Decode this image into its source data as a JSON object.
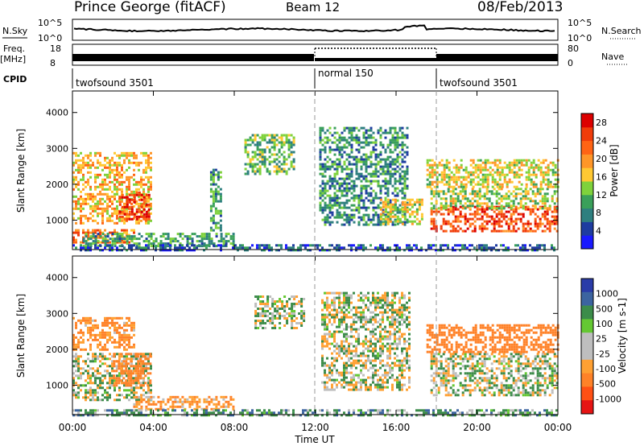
{
  "header": {
    "station": "Prince George (fitACF)",
    "beam": "Beam 12",
    "date": "08/Feb/2013"
  },
  "side_labels": {
    "nsky": "N.Sky",
    "freq_line1": "Freq.",
    "freq_line2": "[MHz]",
    "cpid": "CPID",
    "nsearch": "N.Search",
    "nave": "Nave"
  },
  "tick_labels": {
    "nsky_top": "10^5",
    "nsky_bottom": "10^0",
    "freq_top": "18",
    "freq_bottom": "8",
    "nsearch_top": "10^5",
    "nsearch_bottom": "10^0",
    "nave_top": "80",
    "nave_bottom": "0"
  },
  "cpid_segments": [
    {
      "label": "twofsound 3501",
      "start": "00:00",
      "end": "12:00"
    },
    {
      "label": "normal 150",
      "start": "12:00",
      "end": "18:00"
    },
    {
      "label": "twofsound 3501",
      "start": "18:00",
      "end": "24:00"
    }
  ],
  "colors": {
    "power_scale": [
      "#1a1aff",
      "#1e3ca0",
      "#2e7f7f",
      "#3aa05a",
      "#7fd23c",
      "#ffc832",
      "#ff9628",
      "#ff6414",
      "#f03c0a",
      "#dc0000"
    ],
    "velocity_scale": [
      "#2a3ca8",
      "#3c64a0",
      "#3c8c4a",
      "#64c832",
      "#bebebe",
      "#bebebe",
      "#ffa032",
      "#ff8228",
      "#ff5014",
      "#e61414"
    ],
    "axis": "#000000",
    "noise_line": "#000000"
  },
  "chart_data": [
    {
      "type": "heatmap",
      "panel": "power",
      "ylabel": "Slant Range [km]",
      "xlabel": "",
      "xlim": [
        0,
        24
      ],
      "ylim": [
        180,
        4600
      ],
      "yticks": [
        1000,
        2000,
        3000,
        4000
      ],
      "xticks": [
        "00:00",
        "04:00",
        "08:00",
        "12:00",
        "16:00",
        "20:00",
        "00:00"
      ],
      "colorbar": {
        "label": "Power [dB]",
        "ticks": [
          4,
          8,
          12,
          16,
          20,
          24,
          28
        ],
        "range": [
          0,
          30
        ]
      },
      "regions": [
        {
          "t0": 0.0,
          "t1": 3.9,
          "r0": 900,
          "r1": 2900,
          "v": 18
        },
        {
          "t0": 0.0,
          "t1": 3.0,
          "r0": 350,
          "r1": 750,
          "v": 22
        },
        {
          "t0": 2.3,
          "t1": 3.8,
          "r0": 1000,
          "r1": 1800,
          "v": 26
        },
        {
          "t0": 0.5,
          "t1": 8.0,
          "r0": 300,
          "r1": 650,
          "v": 10
        },
        {
          "t0": 6.8,
          "t1": 7.3,
          "r0": 700,
          "r1": 2500,
          "v": 10
        },
        {
          "t0": 8.5,
          "t1": 11.0,
          "r0": 2300,
          "r1": 3400,
          "v": 12
        },
        {
          "t0": 12.2,
          "t1": 16.6,
          "r0": 900,
          "r1": 3600,
          "v": 9
        },
        {
          "t0": 15.2,
          "t1": 17.3,
          "r0": 900,
          "r1": 1600,
          "v": 16
        },
        {
          "t0": 17.7,
          "t1": 24.0,
          "r0": 700,
          "r1": 1400,
          "v": 24
        },
        {
          "t0": 17.7,
          "t1": 24.0,
          "r0": 1300,
          "r1": 1900,
          "v": 14
        },
        {
          "t0": 17.5,
          "t1": 24.0,
          "r0": 1900,
          "r1": 2700,
          "v": 16
        },
        {
          "t0": 0.0,
          "t1": 24.0,
          "r0": 180,
          "r1": 330,
          "v": 6
        }
      ]
    },
    {
      "type": "heatmap",
      "panel": "velocity",
      "ylabel": "Slant Range [km]",
      "xlabel": "Time UT",
      "xlim": [
        0,
        24
      ],
      "ylim": [
        180,
        4600
      ],
      "yticks": [
        1000,
        2000,
        3000,
        4000
      ],
      "xticks": [
        "00:00",
        "04:00",
        "08:00",
        "12:00",
        "16:00",
        "20:00",
        "00:00"
      ],
      "colorbar": {
        "label": "Velocity [m s-1]",
        "ticks": [
          "1000",
          "500",
          "100",
          "25",
          "-25",
          "-100",
          "-500",
          "-1000"
        ],
        "range": [
          -1000,
          1000
        ]
      },
      "regions": [
        {
          "t0": 0.0,
          "t1": 3.9,
          "r0": 600,
          "r1": 1900,
          "v": 0
        },
        {
          "t0": 0.0,
          "t1": 3.0,
          "r0": 2000,
          "r1": 2900,
          "v": -100
        },
        {
          "t0": 2.0,
          "t1": 3.9,
          "r0": 1000,
          "r1": 1900,
          "v": -400
        },
        {
          "t0": 3.0,
          "t1": 8.0,
          "r0": 300,
          "r1": 700,
          "v": -80
        },
        {
          "t0": 9.0,
          "t1": 11.5,
          "r0": 2600,
          "r1": 3500,
          "v": 0
        },
        {
          "t0": 12.3,
          "t1": 16.6,
          "r0": 900,
          "r1": 3600,
          "v": 0
        },
        {
          "t0": 17.7,
          "t1": 24.0,
          "r0": 700,
          "r1": 1900,
          "v": 0
        },
        {
          "t0": 17.5,
          "t1": 24.0,
          "r0": 1900,
          "r1": 2700,
          "v": -200
        },
        {
          "t0": 0.0,
          "t1": 24.0,
          "r0": 180,
          "r1": 330,
          "v": 60
        }
      ]
    }
  ]
}
